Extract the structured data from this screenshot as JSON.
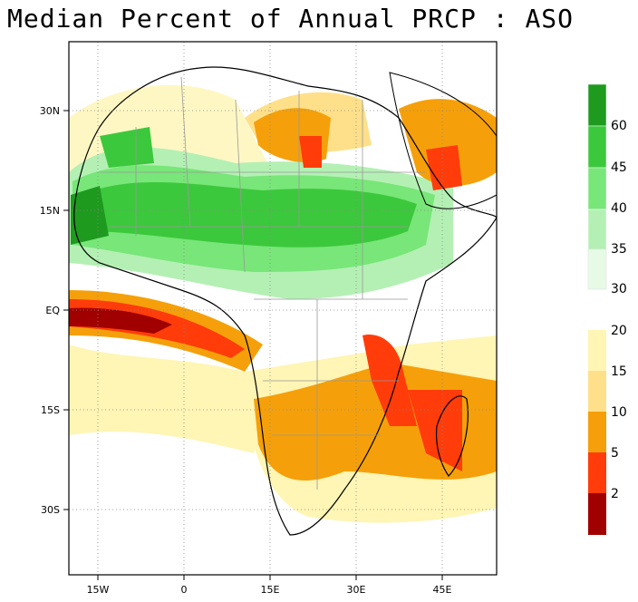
{
  "title": "Median Percent of Annual PRCP  :  ASO",
  "axes": {
    "y_ticks": [
      "30N",
      "15N",
      "EQ",
      "15S",
      "30S"
    ],
    "x_ticks": [
      "15W",
      "0",
      "15E",
      "30E",
      "45E"
    ]
  },
  "legend": {
    "wet": {
      "labels": [
        "60",
        "45",
        "40",
        "35",
        "30"
      ],
      "colors": [
        "#1e9a1e",
        "#3cc83c",
        "#78e678",
        "#b4f0b4",
        "#e6fae6"
      ]
    },
    "dry": {
      "labels": [
        "20",
        "15",
        "10",
        "5",
        "2"
      ],
      "colors": [
        "#fff5b4",
        "#ffe08a",
        "#f5a00a",
        "#ff3c0a",
        "#a00000"
      ]
    }
  }
}
